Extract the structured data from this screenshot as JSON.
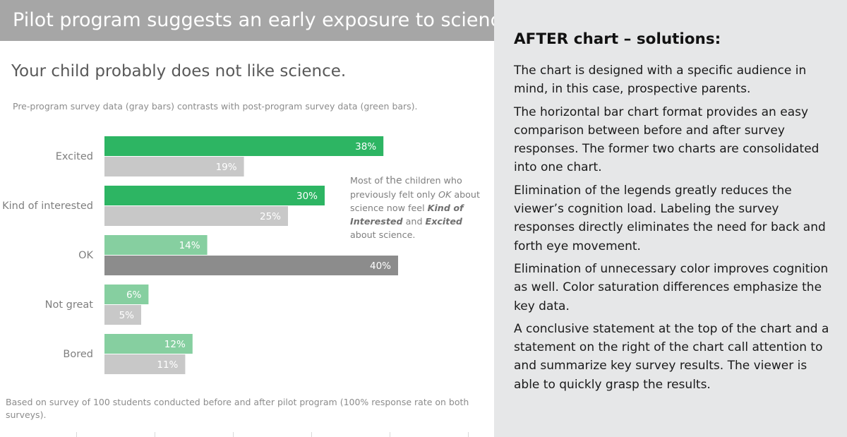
{
  "banner": {
    "title": "Pilot program suggests an early exposure to science."
  },
  "headline": "Your child probably does not like science.",
  "subtitle": "Pre-program survey data (gray bars) contrasts with post-program survey data (green bars).",
  "callout": {
    "t1": "Most of ",
    "t2": "the",
    "t3": " children who previously felt only ",
    "ok": "OK",
    "t4": " about science now feel ",
    "kind": "Kind of Interested",
    "t5": " and ",
    "excited": "Excited",
    "t6": " about science."
  },
  "footnote": "Based on survey of 100 students conducted before and after pilot program (100% response rate on both surveys).",
  "chart_data": {
    "type": "bar",
    "orientation": "horizontal",
    "categories": [
      "Excited",
      "Kind of interested",
      "OK",
      "Not great",
      "Bored"
    ],
    "series": [
      {
        "values": [
          38,
          30,
          14,
          6,
          12
        ],
        "labels": [
          "38%",
          "30%",
          "14%",
          "6%",
          "12%"
        ]
      },
      {
        "values": [
          19,
          25,
          40,
          5,
          11
        ],
        "labels": [
          "19%",
          "25%",
          "40%",
          "5%",
          "11%"
        ]
      }
    ],
    "xlim": [
      0,
      45
    ],
    "unit": "%",
    "colors": {
      "post_emphasis": "#2db563",
      "post_light": "#86cfa0",
      "pre_light": "#c8c8c8",
      "pre_emphasis": "#8c8c8c"
    },
    "emphasis": {
      "post": [
        true,
        true,
        false,
        false,
        false
      ],
      "pre": [
        false,
        false,
        true,
        false,
        false
      ]
    }
  },
  "right_panel": {
    "title": "AFTER chart – solutions:",
    "paragraphs": [
      "The chart is designed with a specific audience in mind, in this case, prospective parents.",
      "The horizontal bar chart format provides an easy comparison between before and after survey responses. The former two charts are consolidated into one chart.",
      "Elimination of the legends greatly reduces the viewer’s cognition load. Labeling the survey responses directly eliminates the need for back and forth eye movement.",
      "Elimination of unnecessary color improves cognition as well. Color saturation differences emphasize the key data.",
      "A conclusive statement at the top of the chart and a statement on the right of the chart call attention to and summarize key survey results. The viewer is able to quickly grasp the results."
    ]
  }
}
